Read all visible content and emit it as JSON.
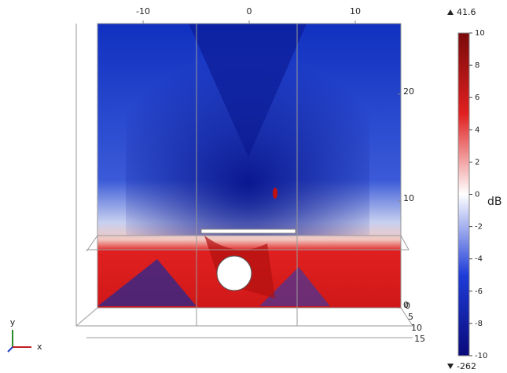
{
  "chart_data": {
    "type": "field",
    "xticks": [
      -10,
      0,
      10
    ],
    "xlim": [
      -14.3,
      14.3
    ],
    "yticks": [
      0,
      10,
      20
    ],
    "ylim": [
      0,
      26.6
    ],
    "zticks": [
      0,
      5,
      10,
      15
    ],
    "zlim": [
      0,
      15
    ],
    "colorbar": {
      "label": "dB",
      "lim": [
        -10,
        10
      ],
      "ticks": [
        10,
        8,
        6,
        4,
        2,
        0,
        -2,
        -4,
        -6,
        -8,
        -10
      ],
      "max": 41.6,
      "min": -262,
      "colors": [
        "#0a0a7a",
        "#1e3cd8",
        "#ffffff",
        "#e02020",
        "#7a0a0a"
      ]
    },
    "axis_labels": {
      "x": "x",
      "y": "y"
    }
  }
}
